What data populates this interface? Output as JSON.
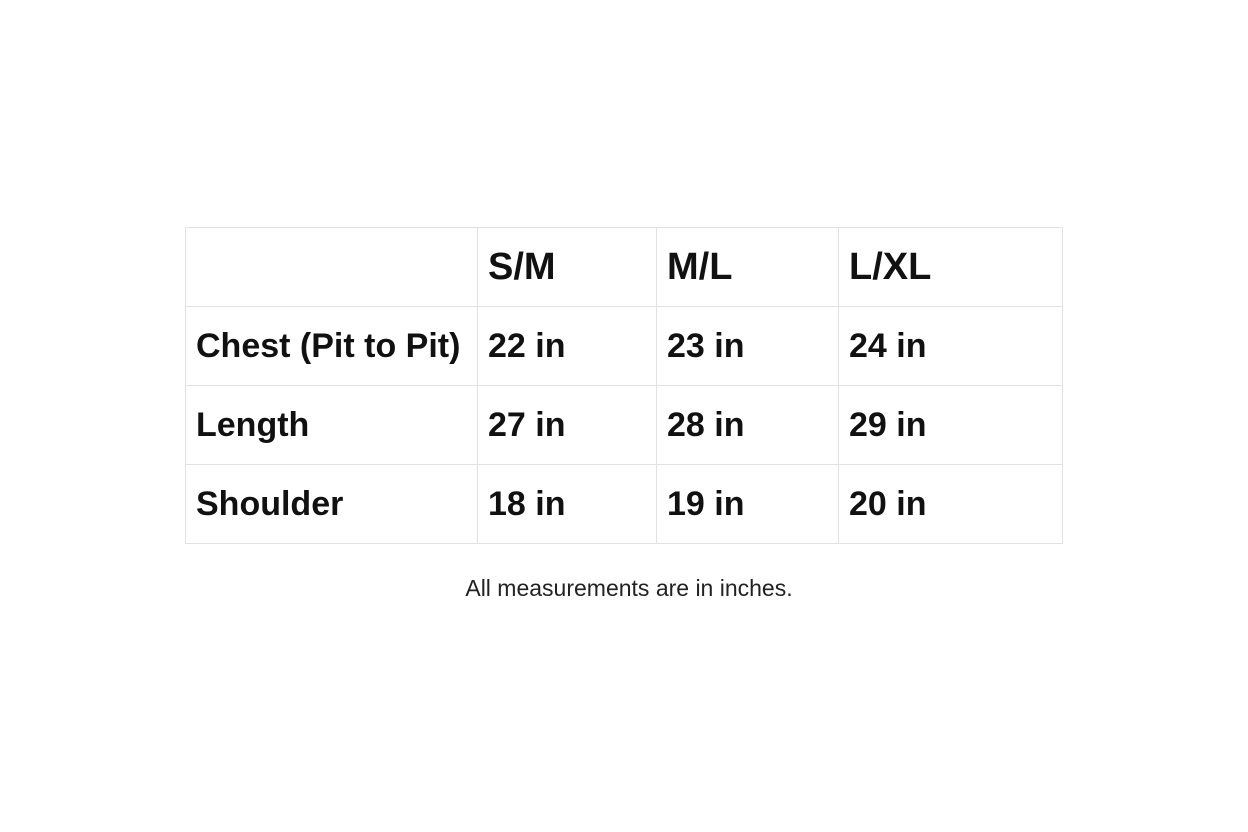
{
  "table": {
    "headers": [
      "",
      "S/M",
      "M/L",
      "L/XL"
    ],
    "rows": [
      {
        "label": "Chest (Pit to Pit)",
        "values": [
          "22 in",
          "23 in",
          "24 in"
        ]
      },
      {
        "label": "Length",
        "values": [
          "27 in",
          "28 in",
          "29 in"
        ]
      },
      {
        "label": "Shoulder",
        "values": [
          "18 in",
          "19 in",
          "20 in"
        ]
      }
    ]
  },
  "note": "All measurements are in inches."
}
